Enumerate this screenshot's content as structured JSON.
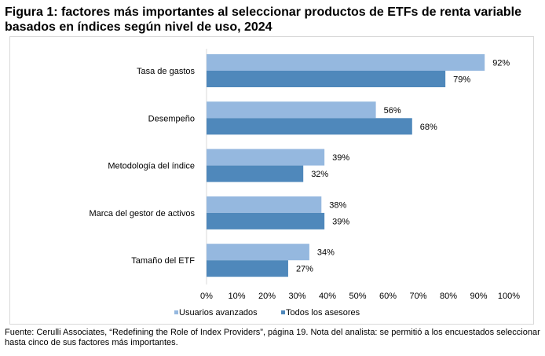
{
  "title": "Figura 1: factores más importantes al seleccionar productos de ETFs de renta variable basados en índices según nivel de uso, 2024",
  "note": "Fuente: Cerulli Associates, “Redefining the Role of Index Providers”, página 19. Nota del analista: se permitió a los encuestados seleccionar hasta cinco de sus factores más importantes.",
  "chart_data": {
    "type": "bar",
    "orientation": "horizontal",
    "title": "Figura 1: factores más importantes al seleccionar productos de ETFs de renta variable basados en índices según nivel de uso, 2024",
    "categories": [
      "Tasa de gastos",
      "Desempeño",
      "Metodología del índice",
      "Marca del gestor de activos",
      "Tamaño del ETF"
    ],
    "series": [
      {
        "name": "Usuarios avanzados",
        "color": "#95B8DF",
        "values": [
          92,
          56,
          39,
          38,
          34
        ]
      },
      {
        "name": "Todos los asesores",
        "color": "#4F88BB",
        "values": [
          79,
          68,
          32,
          39,
          27
        ]
      }
    ],
    "xlim": [
      0,
      100
    ],
    "xticks": [
      "0%",
      "10%",
      "20%",
      "30%",
      "40%",
      "50%",
      "60%",
      "70%",
      "80%",
      "90%",
      "100%"
    ],
    "grid": false,
    "legend": "bottom"
  }
}
